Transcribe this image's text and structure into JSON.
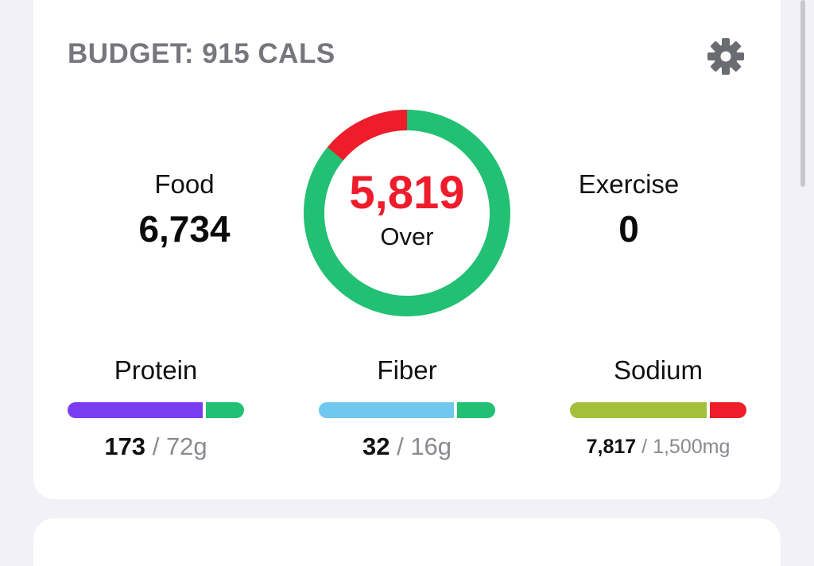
{
  "header": {
    "title": "BUDGET: 915 CALS",
    "settings_icon": "gear-icon"
  },
  "food": {
    "label": "Food",
    "value": "6,734"
  },
  "exercise": {
    "label": "Exercise",
    "value": "0"
  },
  "ring": {
    "value": "5,819",
    "status": "Over",
    "over_fraction": 0.14,
    "colors": {
      "over": "#ef1c2b",
      "base": "#22c073"
    }
  },
  "macros": [
    {
      "name": "Protein",
      "current": "173",
      "separator": "/",
      "goal": "72g",
      "fill_fraction": 0.78,
      "color_main": "#7b3cf0",
      "color_tail": "#22c073"
    },
    {
      "name": "Fiber",
      "current": "32",
      "separator": "/",
      "goal": "16g",
      "fill_fraction": 0.78,
      "color_main": "#71c8ee",
      "color_tail": "#22c073"
    },
    {
      "name": "Sodium",
      "current": "7,817",
      "separator": "/",
      "goal": "1,500mg",
      "fill_fraction": 0.79,
      "color_main": "#a3bf3b",
      "color_tail": "#ef1c2b"
    }
  ]
}
